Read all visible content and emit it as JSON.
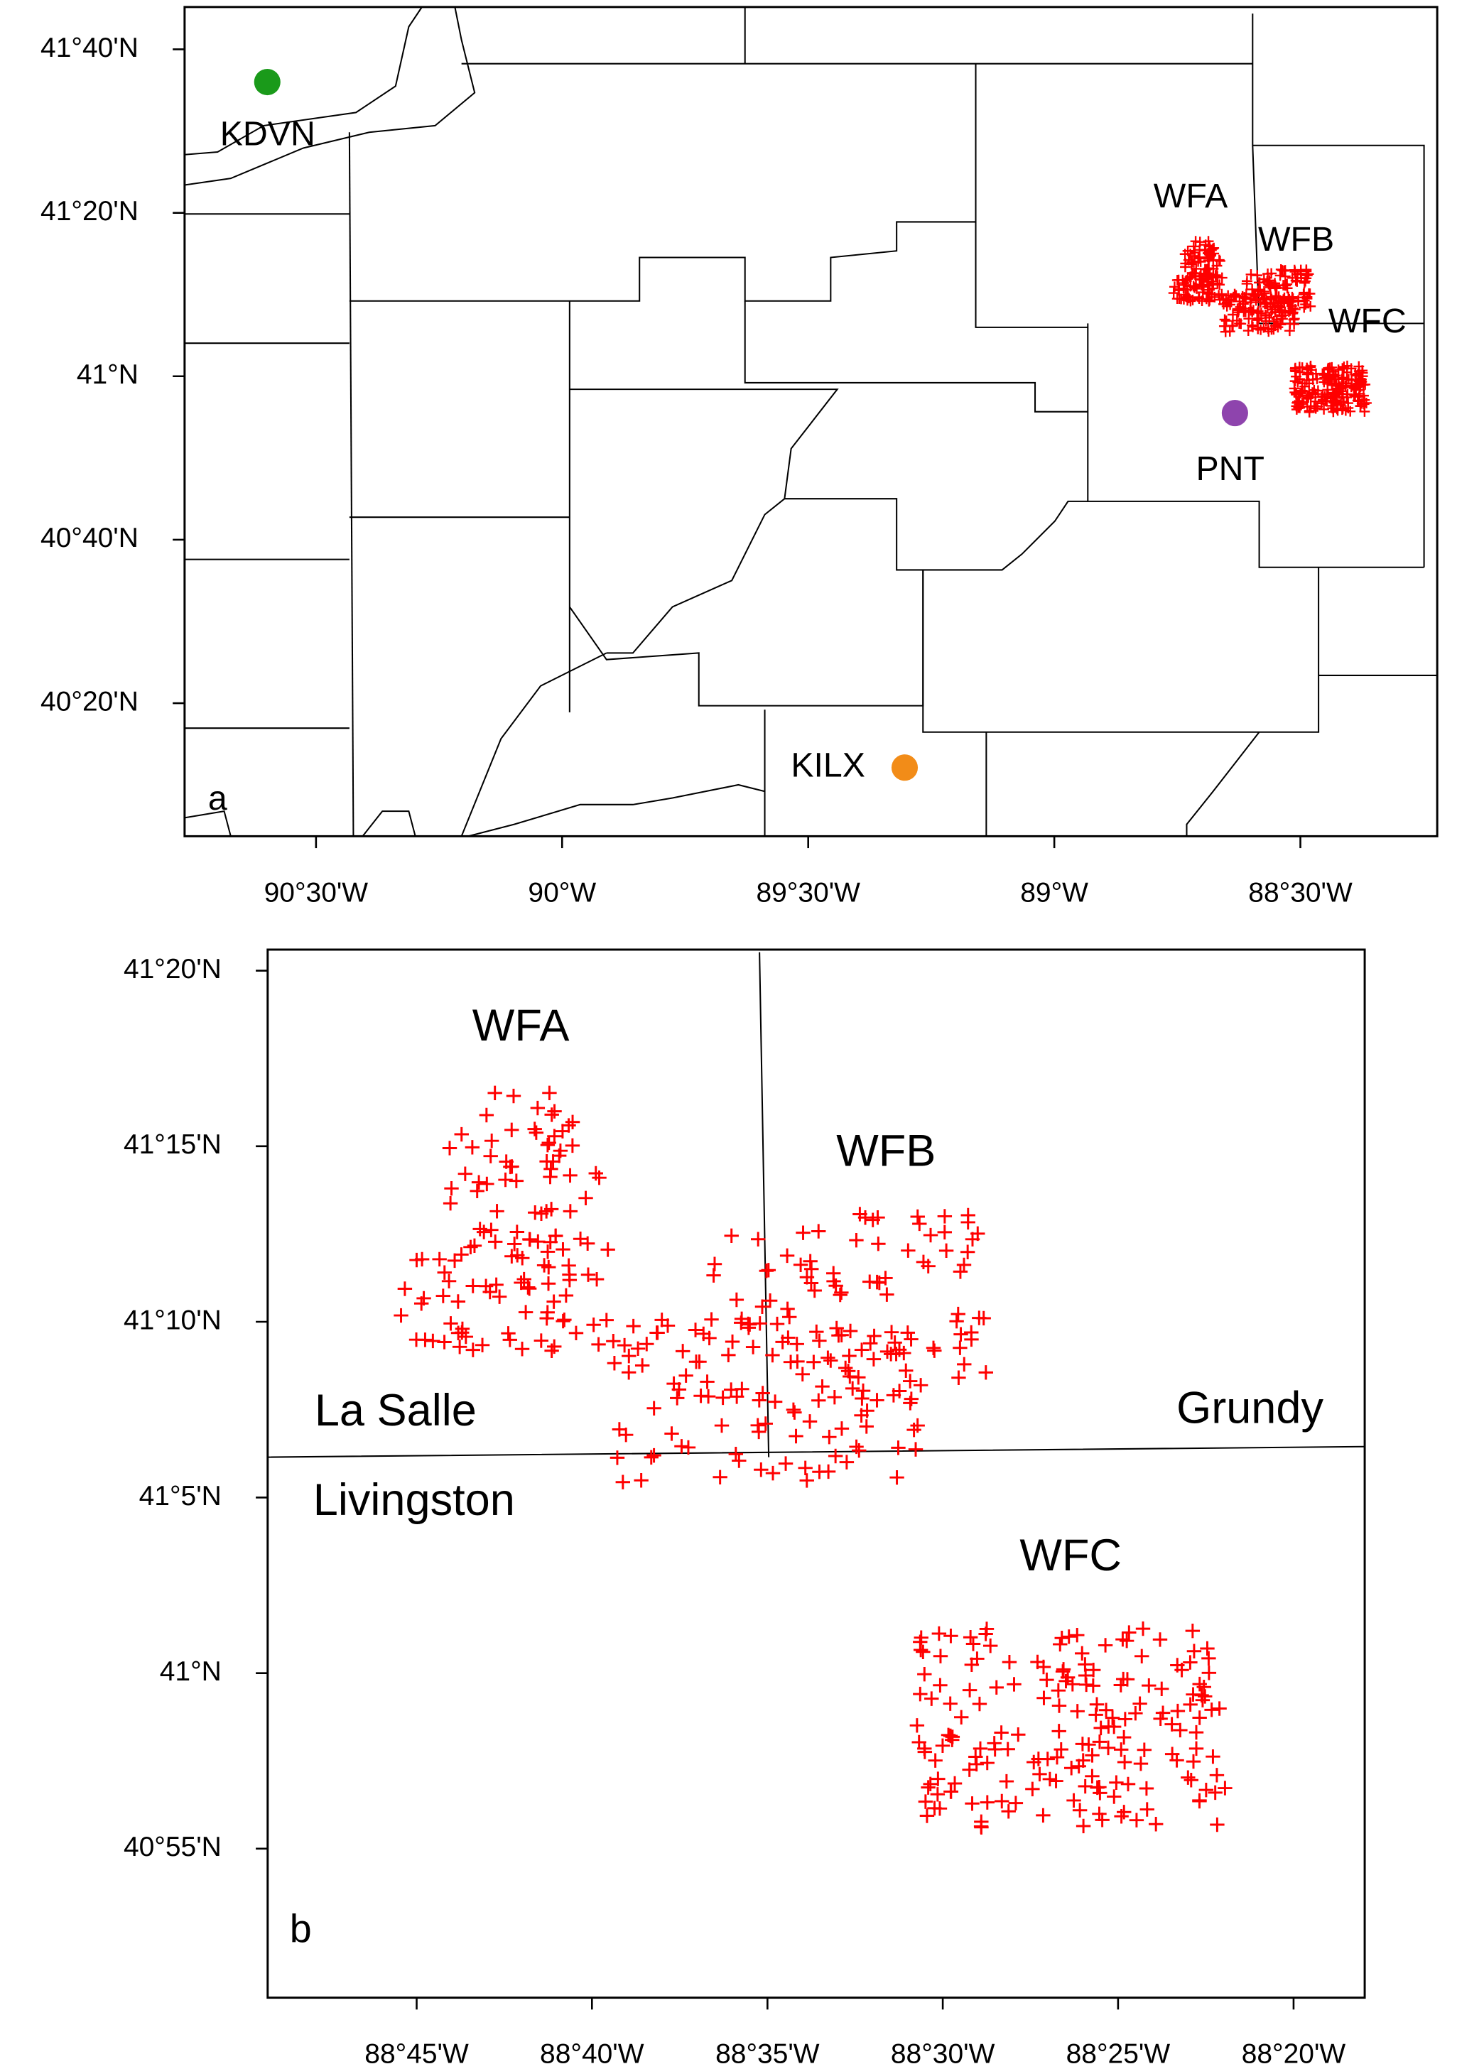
{
  "map": {
    "panels": [
      {
        "label": "a",
        "xlim": [
          -90.767,
          -88.222
        ],
        "ylim": [
          40.062,
          41.753
        ],
        "xticks": [
          {
            "value": -90.5,
            "label": "90°30'W"
          },
          {
            "value": -90,
            "label": "90°W"
          },
          {
            "value": -89.5,
            "label": "89°30'W"
          },
          {
            "value": -89,
            "label": "89°W"
          },
          {
            "value": -88.5,
            "label": "88°30'W"
          }
        ],
        "yticks": [
          {
            "value": 41.6667,
            "label": "41°40'N"
          },
          {
            "value": 41.3333,
            "label": "41°20'N"
          },
          {
            "value": 41,
            "label": "41°N"
          },
          {
            "value": 40.6667,
            "label": "40°40'N"
          },
          {
            "value": 40.3333,
            "label": "40°20'N"
          }
        ],
        "sites": [
          {
            "name": "KDVN",
            "lon": -90.599,
            "lat": 41.6,
            "color": "#1a9a1a"
          },
          {
            "name": "KILX",
            "lon": -89.304,
            "lat": 40.202,
            "color": "#f28c18"
          },
          {
            "name": "PNT",
            "lon": -88.633,
            "lat": 40.925,
            "color": "#8e44ad"
          }
        ],
        "farms": [
          "WFA",
          "WFB",
          "WFC"
        ]
      },
      {
        "label": "b",
        "xlim": [
          -88.8208,
          -88.2995
        ],
        "ylim": [
          40.846,
          41.3433
        ],
        "xticks": [
          {
            "value": -88.75,
            "label": "88°45'W"
          },
          {
            "value": -88.6667,
            "label": "88°40'W"
          },
          {
            "value": -88.5833,
            "label": "88°35'W"
          },
          {
            "value": -88.5,
            "label": "88°30'W"
          },
          {
            "value": -88.4167,
            "label": "88°25'W"
          },
          {
            "value": -88.3333,
            "label": "88°20'W"
          }
        ],
        "yticks": [
          {
            "value": 41.3333,
            "label": "41°20'N"
          },
          {
            "value": 41.25,
            "label": "41°15'N"
          },
          {
            "value": 41.1667,
            "label": "41°10'N"
          },
          {
            "value": 41.0833,
            "label": "41°5'N"
          },
          {
            "value": 41,
            "label": "41°N"
          },
          {
            "value": 40.9167,
            "label": "40°55'N"
          }
        ],
        "farms": [
          "WFA",
          "WFB",
          "WFC"
        ],
        "counties": [
          "La Salle",
          "Grundy",
          "Livingston"
        ]
      }
    ]
  }
}
